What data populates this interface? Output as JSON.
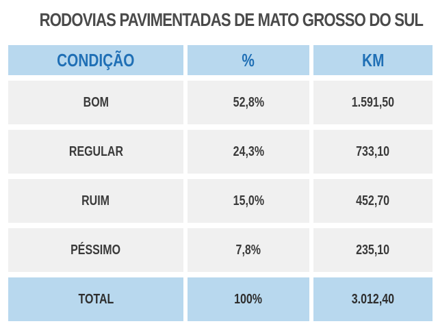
{
  "chart_data": {
    "type": "table",
    "title": "RODOVIAS PAVIMENTADAS DE MATO GROSSO DO SUL",
    "columns": [
      "CONDIÇÃO",
      "%",
      "KM"
    ],
    "rows": [
      [
        "BOM",
        "52,8%",
        "1.591,50"
      ],
      [
        "REGULAR",
        "24,3%",
        "733,10"
      ],
      [
        "RUIM",
        "15,0%",
        "452,70"
      ],
      [
        "PÉSSIMO",
        "7,8%",
        "235,10"
      ],
      [
        "TOTAL",
        "100%",
        "3.012,40"
      ]
    ]
  },
  "colors": {
    "header_bg": "#b8d8ee",
    "header_text": "#1f6fb5",
    "row_bg": "#f0f0f0",
    "row_text": "#3a3a3a",
    "title_text": "#4a4a4a"
  }
}
